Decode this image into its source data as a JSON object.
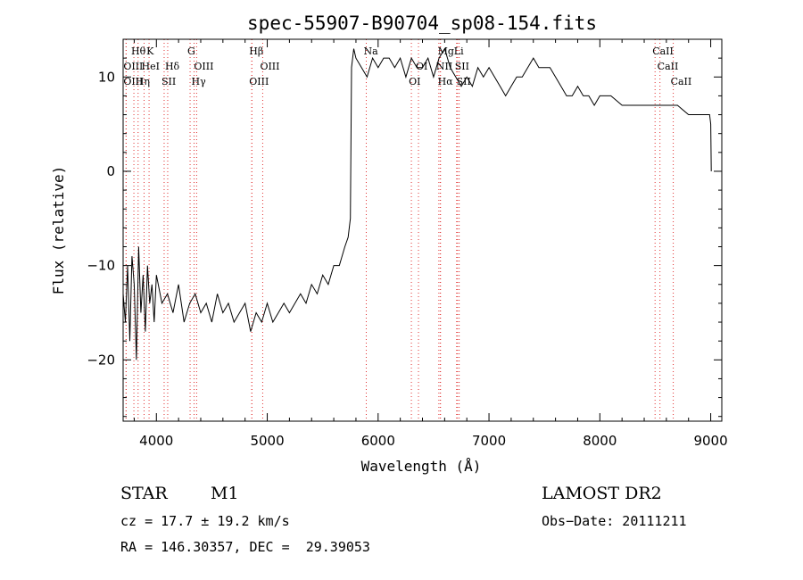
{
  "chart_data": {
    "type": "line",
    "title": "spec-55907-B90704_sp08-154.fits",
    "xlabel": "Wavelength (Å)",
    "ylabel": "Flux (relative)",
    "xlim": [
      3700,
      9100
    ],
    "ylim": [
      -26.5,
      14
    ],
    "x_ticks": [
      4000,
      5000,
      6000,
      7000,
      8000,
      9000
    ],
    "y_ticks": [
      -20,
      -10,
      0,
      10
    ],
    "x_tick_labels": [
      "4000",
      "5000",
      "6000",
      "7000",
      "8000",
      "9000"
    ],
    "y_tick_labels": [
      "−20",
      "−10",
      "0",
      "10"
    ],
    "grid": false,
    "legend": "none",
    "series": [
      {
        "color": "#000000",
        "x": [
          3700,
          3720,
          3740,
          3760,
          3780,
          3800,
          3820,
          3840,
          3860,
          3880,
          3900,
          3920,
          3940,
          3960,
          3980,
          4000,
          4050,
          4100,
          4150,
          4200,
          4250,
          4300,
          4350,
          4400,
          4450,
          4500,
          4550,
          4600,
          4650,
          4700,
          4750,
          4800,
          4850,
          4900,
          4950,
          5000,
          5050,
          5100,
          5150,
          5200,
          5250,
          5300,
          5350,
          5400,
          5450,
          5500,
          5550,
          5600,
          5650,
          5700,
          5730,
          5750,
          5760,
          5780,
          5800,
          5850,
          5900,
          5950,
          6000,
          6050,
          6100,
          6150,
          6200,
          6250,
          6300,
          6350,
          6400,
          6450,
          6500,
          6550,
          6600,
          6650,
          6700,
          6750,
          6800,
          6850,
          6900,
          6950,
          7000,
          7050,
          7100,
          7150,
          7200,
          7250,
          7300,
          7350,
          7400,
          7450,
          7500,
          7550,
          7600,
          7650,
          7700,
          7750,
          7800,
          7850,
          7900,
          7950,
          8000,
          8100,
          8200,
          8300,
          8400,
          8500,
          8600,
          8700,
          8800,
          8900,
          8950,
          8990,
          9000,
          9005
        ],
        "y": [
          -13,
          -16,
          -10,
          -18,
          -9,
          -12,
          -20,
          -8,
          -15,
          -11,
          -17,
          -10,
          -14,
          -12,
          -16,
          -11,
          -14,
          -13,
          -15,
          -12,
          -16,
          -14,
          -13,
          -15,
          -14,
          -16,
          -13,
          -15,
          -14,
          -16,
          -15,
          -14,
          -17,
          -15,
          -16,
          -14,
          -16,
          -15,
          -14,
          -15,
          -14,
          -13,
          -14,
          -12,
          -13,
          -11,
          -12,
          -10,
          -10,
          -8,
          -7,
          -5,
          11,
          13,
          12,
          11,
          10,
          12,
          11,
          12,
          12,
          11,
          12,
          10,
          12,
          11,
          11,
          12,
          10,
          12,
          13,
          11,
          10,
          9,
          10,
          9,
          11,
          10,
          11,
          10,
          9,
          8,
          9,
          10,
          10,
          11,
          12,
          11,
          11,
          11,
          10,
          9,
          8,
          8,
          9,
          8,
          8,
          7,
          8,
          8,
          7,
          7,
          7,
          7,
          7,
          7,
          6,
          6,
          6,
          6,
          5,
          0
        ]
      }
    ],
    "line_ids": [
      {
        "label": "Hθ",
        "x": 3797,
        "row": 0
      },
      {
        "label": "K",
        "x": 3934,
        "row": 0
      },
      {
        "label": "G",
        "x": 4304,
        "row": 0
      },
      {
        "label": "Hβ",
        "x": 4861,
        "row": 0
      },
      {
        "label": "Na",
        "x": 5893,
        "row": 0
      },
      {
        "label": "Mg",
        "x": 6562,
        "row": 0
      },
      {
        "label": "Li",
        "x": 6708,
        "row": 0
      },
      {
        "label": "CaII",
        "x": 8498,
        "row": 0
      },
      {
        "label": "OIII",
        "x": 3727,
        "row": 1
      },
      {
        "label": "HeI",
        "x": 3889,
        "row": 1
      },
      {
        "label": "Hδ",
        "x": 4102,
        "row": 1
      },
      {
        "label": "OIII",
        "x": 4363,
        "row": 1
      },
      {
        "label": "OIII",
        "x": 4959,
        "row": 1
      },
      {
        "label": "OI",
        "x": 6364,
        "row": 1
      },
      {
        "label": "NII",
        "x": 6548,
        "row": 1
      },
      {
        "label": "SII",
        "x": 6716,
        "row": 1
      },
      {
        "label": "CaII",
        "x": 8542,
        "row": 1
      },
      {
        "label": "OIII",
        "x": 3727,
        "row": 2
      },
      {
        "label": "Hη",
        "x": 3835,
        "row": 2
      },
      {
        "label": "SII",
        "x": 4070,
        "row": 2
      },
      {
        "label": "Hγ",
        "x": 4340,
        "row": 2
      },
      {
        "label": "OIII",
        "x": 4861,
        "row": 2
      },
      {
        "label": "OI",
        "x": 6300,
        "row": 2
      },
      {
        "label": "Hα",
        "x": 6562,
        "row": 2
      },
      {
        "label": "SII",
        "x": 6731,
        "row": 2
      },
      {
        "label": "CaII",
        "x": 8662,
        "row": 2
      }
    ],
    "line_marker_color": "#e03030"
  },
  "info": {
    "object_type": "STAR",
    "subclass": "M1",
    "survey": "LAMOST DR2",
    "cz": "cz = 17.7 ± 19.2 km/s",
    "obs_date": "Obs−Date: 20111211",
    "coords": "RA = 146.30357, DEC =  29.39053"
  }
}
